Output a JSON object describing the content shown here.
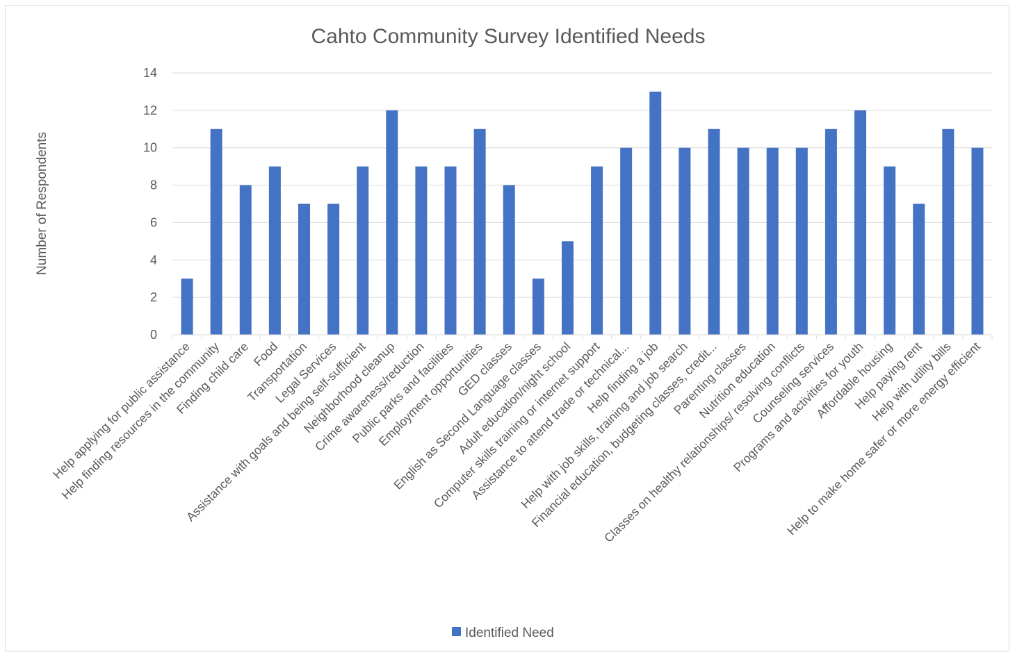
{
  "chart_data": {
    "type": "bar",
    "title": "Cahto Community Survey Identified Needs",
    "xlabel": "",
    "ylabel": "Number of Respondents",
    "ylim": [
      0,
      14
    ],
    "yticks": [
      0,
      2,
      4,
      6,
      8,
      10,
      12,
      14
    ],
    "grid": true,
    "legend_position": "bottom",
    "categories": [
      "Help applying for public assistance",
      "Help finding resources in the community",
      "Finding child care",
      "Food",
      "Transportation",
      "Legal Services",
      "Assistance with goals and being self-sufficient",
      "Neighborhood cleanup",
      "Crime awareness/reduction",
      "Public parks and facilities",
      "Employment opportunities",
      "GED classes",
      "English as Second Language classes",
      "Adult education/night school",
      "Computer skills training or internet support",
      "Assistance to attend trade or technical...",
      "Help finding a job",
      "Help with job skills, training and job search",
      "Financial education, budgeting classes, credit...",
      "Parenting classes",
      "Nutrition education",
      "Classes on healthy relationships/ resolving conflicts",
      "Counseling services",
      "Programs and activities for youth",
      "Affordable housing",
      "Help paying rent",
      "Help with utility bills",
      "Help to make home safer or more energy efficient"
    ],
    "series": [
      {
        "name": "Identified Need",
        "color": "#4472c4",
        "values": [
          3,
          11,
          8,
          9,
          7,
          7,
          9,
          12,
          9,
          9,
          11,
          8,
          3,
          5,
          9,
          10,
          13,
          10,
          11,
          10,
          10,
          10,
          11,
          12,
          9,
          7,
          11,
          10
        ]
      }
    ]
  }
}
